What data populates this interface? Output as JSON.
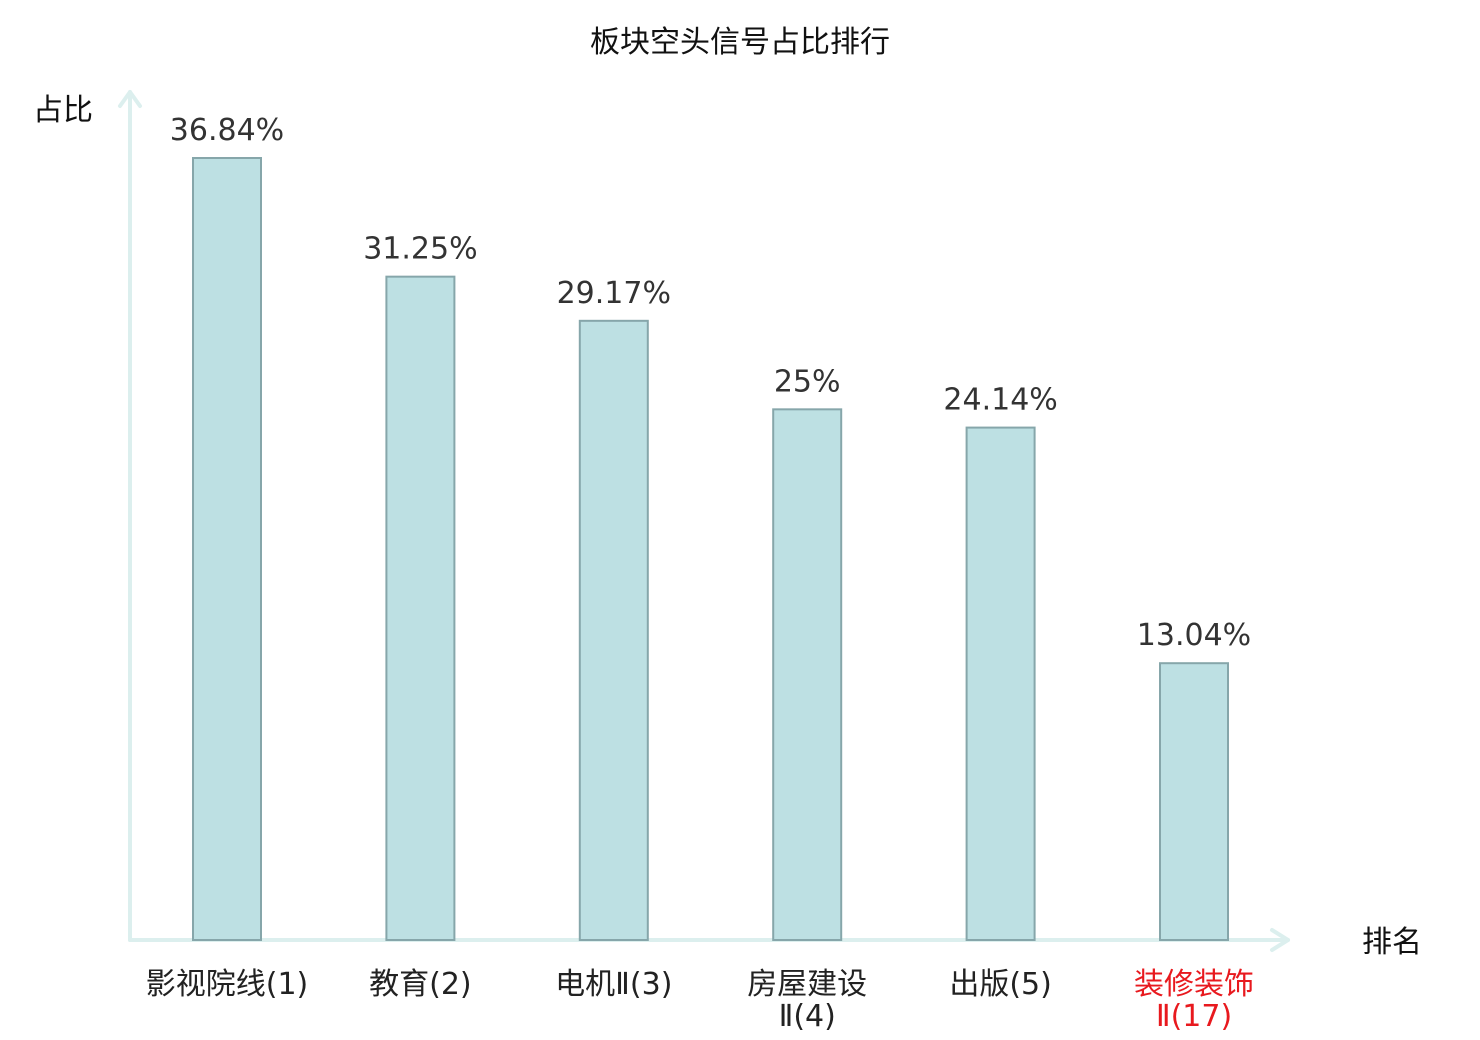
{
  "chart_data": {
    "type": "bar",
    "title": "板块空头信号占比排行",
    "ylabel": "占比",
    "xlabel": "排名",
    "categories": [
      {
        "name_lines": [
          "影视院线"
        ],
        "rank": "(1)",
        "highlight": false
      },
      {
        "name_lines": [
          "教育"
        ],
        "rank": "(2)",
        "highlight": false
      },
      {
        "name_lines": [
          "电机Ⅱ"
        ],
        "rank": "(3)",
        "highlight": false
      },
      {
        "name_lines": [
          "房屋建设",
          "Ⅱ"
        ],
        "rank": "(4)",
        "highlight": false
      },
      {
        "name_lines": [
          "出版"
        ],
        "rank": "(5)",
        "highlight": false
      },
      {
        "name_lines": [
          "装修装饰",
          "Ⅱ"
        ],
        "rank": "(17)",
        "highlight": true
      }
    ],
    "values": [
      36.84,
      31.25,
      29.17,
      25,
      24.14,
      13.04
    ],
    "value_labels": [
      "36.84%",
      "31.25%",
      "29.17%",
      "25%",
      "24.14%",
      "13.04%"
    ],
    "ylim": [
      0,
      40
    ],
    "grid": false,
    "colors": {
      "bar_fill": "#bde0e3",
      "bar_stroke": "#86a6aa",
      "axis": "#dcefee",
      "highlight_text": "#e8191e",
      "normal_text": "#222222"
    }
  }
}
